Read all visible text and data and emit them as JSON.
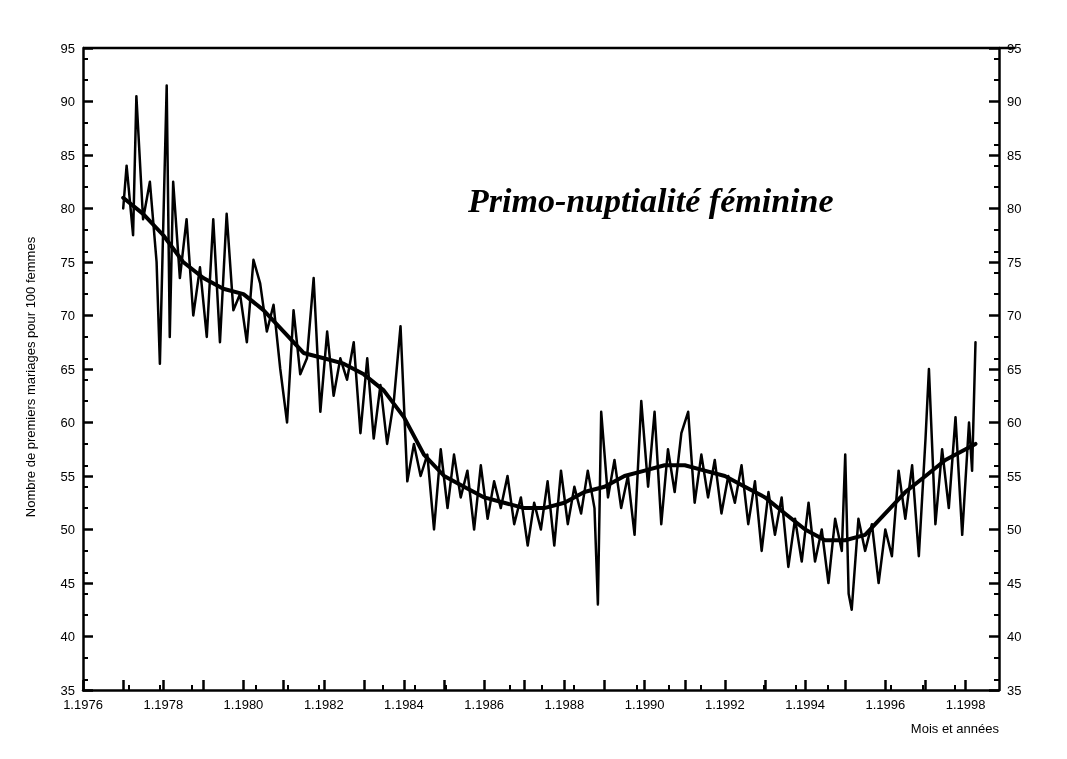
{
  "chart_data": {
    "type": "line",
    "title": "Primo-nuptialité féminine",
    "ylabel": "Nombre de premiers mariages pour 100 femmes",
    "xlabel": "Mois et années",
    "xlim": [
      "1976-01",
      "1998-11"
    ],
    "xticks": [
      {
        "value": "1976-01",
        "label": "1.1976"
      },
      {
        "value": "1977-01",
        "label": null
      },
      {
        "value": "1978-01",
        "label": "1.1978"
      },
      {
        "value": "1979-01",
        "label": null
      },
      {
        "value": "1980-01",
        "label": "1.1980"
      },
      {
        "value": "1981-01",
        "label": null
      },
      {
        "value": "1982-01",
        "label": "1.1982"
      },
      {
        "value": "1983-01",
        "label": null
      },
      {
        "value": "1984-01",
        "label": "1.1984"
      },
      {
        "value": "1985-01",
        "label": null
      },
      {
        "value": "1986-01",
        "label": "1.1986"
      },
      {
        "value": "1987-01",
        "label": null
      },
      {
        "value": "1988-01",
        "label": "1.1988"
      },
      {
        "value": "1989-01",
        "label": null
      },
      {
        "value": "1990-01",
        "label": "1.1990"
      },
      {
        "value": "1991-01",
        "label": null
      },
      {
        "value": "1992-01",
        "label": "1.1992"
      },
      {
        "value": "1993-01",
        "label": null
      },
      {
        "value": "1994-01",
        "label": "1.1994"
      },
      {
        "value": "1995-01",
        "label": null
      },
      {
        "value": "1996-01",
        "label": "1.1996"
      },
      {
        "value": "1997-01",
        "label": null
      },
      {
        "value": "1998-01",
        "label": "1.1998"
      }
    ],
    "ylim": [
      35,
      95
    ],
    "yticks": [
      35,
      40,
      45,
      50,
      55,
      60,
      65,
      70,
      75,
      80,
      85,
      90,
      95
    ],
    "y2lim": [
      35,
      95
    ],
    "y2ticks": [
      35,
      40,
      45,
      50,
      55,
      60,
      65,
      70,
      75,
      80,
      85,
      90,
      95
    ],
    "grid": false,
    "marker": "none",
    "line_style": "solid",
    "series": [
      {
        "color": "#000000",
        "x": [
          "1977-01",
          "1977-02",
          "1977-04",
          "1977-05",
          "1977-07",
          "1977-09",
          "1977-11",
          "1977-12",
          "1978-02",
          "1978-03",
          "1978-04",
          "1978-06",
          "1978-08",
          "1978-10",
          "1978-12",
          "1979-02",
          "1979-04",
          "1979-06",
          "1979-08",
          "1979-10",
          "1979-12",
          "1980-02",
          "1980-04",
          "1980-06",
          "1980-08",
          "1980-10",
          "1980-12",
          "1981-02",
          "1981-04",
          "1981-06",
          "1981-08",
          "1981-10",
          "1981-12",
          "1982-02",
          "1982-04",
          "1982-06",
          "1982-08",
          "1982-10",
          "1982-12",
          "1983-02",
          "1983-04",
          "1983-06",
          "1983-08",
          "1983-10",
          "1983-12",
          "1984-02",
          "1984-04",
          "1984-06",
          "1984-08",
          "1984-10",
          "1984-12",
          "1985-02",
          "1985-04",
          "1985-06",
          "1985-08",
          "1985-10",
          "1985-12",
          "1986-02",
          "1986-04",
          "1986-06",
          "1986-08",
          "1986-10",
          "1986-12",
          "1987-02",
          "1987-04",
          "1987-06",
          "1987-08",
          "1987-10",
          "1987-12",
          "1988-02",
          "1988-04",
          "1988-06",
          "1988-08",
          "1988-10",
          "1988-11",
          "1988-12",
          "1989-02",
          "1989-04",
          "1989-06",
          "1989-08",
          "1989-10",
          "1989-12",
          "1990-02",
          "1990-04",
          "1990-06",
          "1990-08",
          "1990-10",
          "1990-12",
          "1991-02",
          "1991-04",
          "1991-06",
          "1991-08",
          "1991-10",
          "1991-12",
          "1992-02",
          "1992-04",
          "1992-06",
          "1992-08",
          "1992-10",
          "1992-12",
          "1993-02",
          "1993-04",
          "1993-06",
          "1993-08",
          "1993-10",
          "1993-12",
          "1994-02",
          "1994-04",
          "1994-06",
          "1994-08",
          "1994-10",
          "1994-12",
          "1995-01",
          "1995-02",
          "1995-03",
          "1995-05",
          "1995-07",
          "1995-09",
          "1995-11",
          "1996-01",
          "1996-03",
          "1996-05",
          "1996-07",
          "1996-09",
          "1996-11",
          "1997-01",
          "1997-02",
          "1997-04",
          "1997-06",
          "1997-08",
          "1997-10",
          "1997-12",
          "1998-02",
          "1998-03",
          "1998-04"
        ],
        "values": [
          80,
          84,
          77.5,
          90.5,
          79,
          82.5,
          75,
          65.5,
          91.5,
          68,
          82.5,
          73.5,
          79,
          70,
          74.5,
          68,
          79,
          67.5,
          79.5,
          70.5,
          72,
          67.5,
          75.2,
          73,
          68.5,
          71,
          65,
          60,
          70.5,
          64.5,
          66,
          73.5,
          61,
          68.5,
          62.5,
          66,
          64,
          67.5,
          59,
          66,
          58.5,
          63.5,
          58,
          62,
          69,
          54.5,
          58,
          55,
          57,
          50,
          57.5,
          52,
          57,
          53,
          55.5,
          50,
          56,
          51,
          54.5,
          52,
          55,
          50.5,
          53,
          48.5,
          52.5,
          50,
          54.5,
          48.5,
          55.5,
          50.5,
          54,
          51.5,
          55.5,
          52,
          43,
          61,
          53,
          56.5,
          52,
          55,
          49.5,
          62,
          54,
          61,
          50.5,
          57.5,
          53.5,
          59,
          61,
          52.5,
          57,
          53,
          56.5,
          51.5,
          55,
          52.5,
          56,
          50.5,
          54.5,
          48,
          53.5,
          49.5,
          53,
          46.5,
          51,
          47,
          52.5,
          47,
          50,
          45,
          51,
          48,
          57,
          44,
          42.5,
          51,
          48,
          50.5,
          45,
          50,
          47.5,
          55.5,
          51,
          56,
          47.5,
          58.5,
          65,
          50.5,
          57.5,
          52,
          60.5,
          49.5,
          60,
          55.5,
          67.5
        ]
      },
      {
        "color": "#000000",
        "x": [
          "1977-01",
          "1977-07",
          "1978-01",
          "1978-07",
          "1979-01",
          "1979-07",
          "1980-01",
          "1980-07",
          "1981-01",
          "1981-07",
          "1982-01",
          "1982-07",
          "1983-01",
          "1983-07",
          "1984-01",
          "1984-07",
          "1985-01",
          "1985-07",
          "1986-01",
          "1986-07",
          "1987-01",
          "1987-07",
          "1988-01",
          "1988-07",
          "1989-01",
          "1989-07",
          "1990-01",
          "1990-07",
          "1991-01",
          "1991-07",
          "1992-01",
          "1992-07",
          "1993-01",
          "1993-07",
          "1994-01",
          "1994-07",
          "1995-01",
          "1995-07",
          "1996-01",
          "1996-07",
          "1997-01",
          "1997-07",
          "1998-01",
          "1998-04"
        ],
        "values": [
          81,
          79.5,
          77.5,
          75,
          73.5,
          72.5,
          72,
          70.5,
          68.5,
          66.5,
          66,
          65.5,
          64.5,
          63,
          60.5,
          57,
          55,
          54,
          53,
          52.5,
          52,
          52,
          52.5,
          53.5,
          54,
          55,
          55.5,
          56,
          56,
          55.5,
          55,
          54,
          53,
          51.5,
          50,
          49,
          49,
          49.5,
          51.5,
          53.5,
          55,
          56.5,
          57.5,
          58
        ]
      }
    ]
  }
}
